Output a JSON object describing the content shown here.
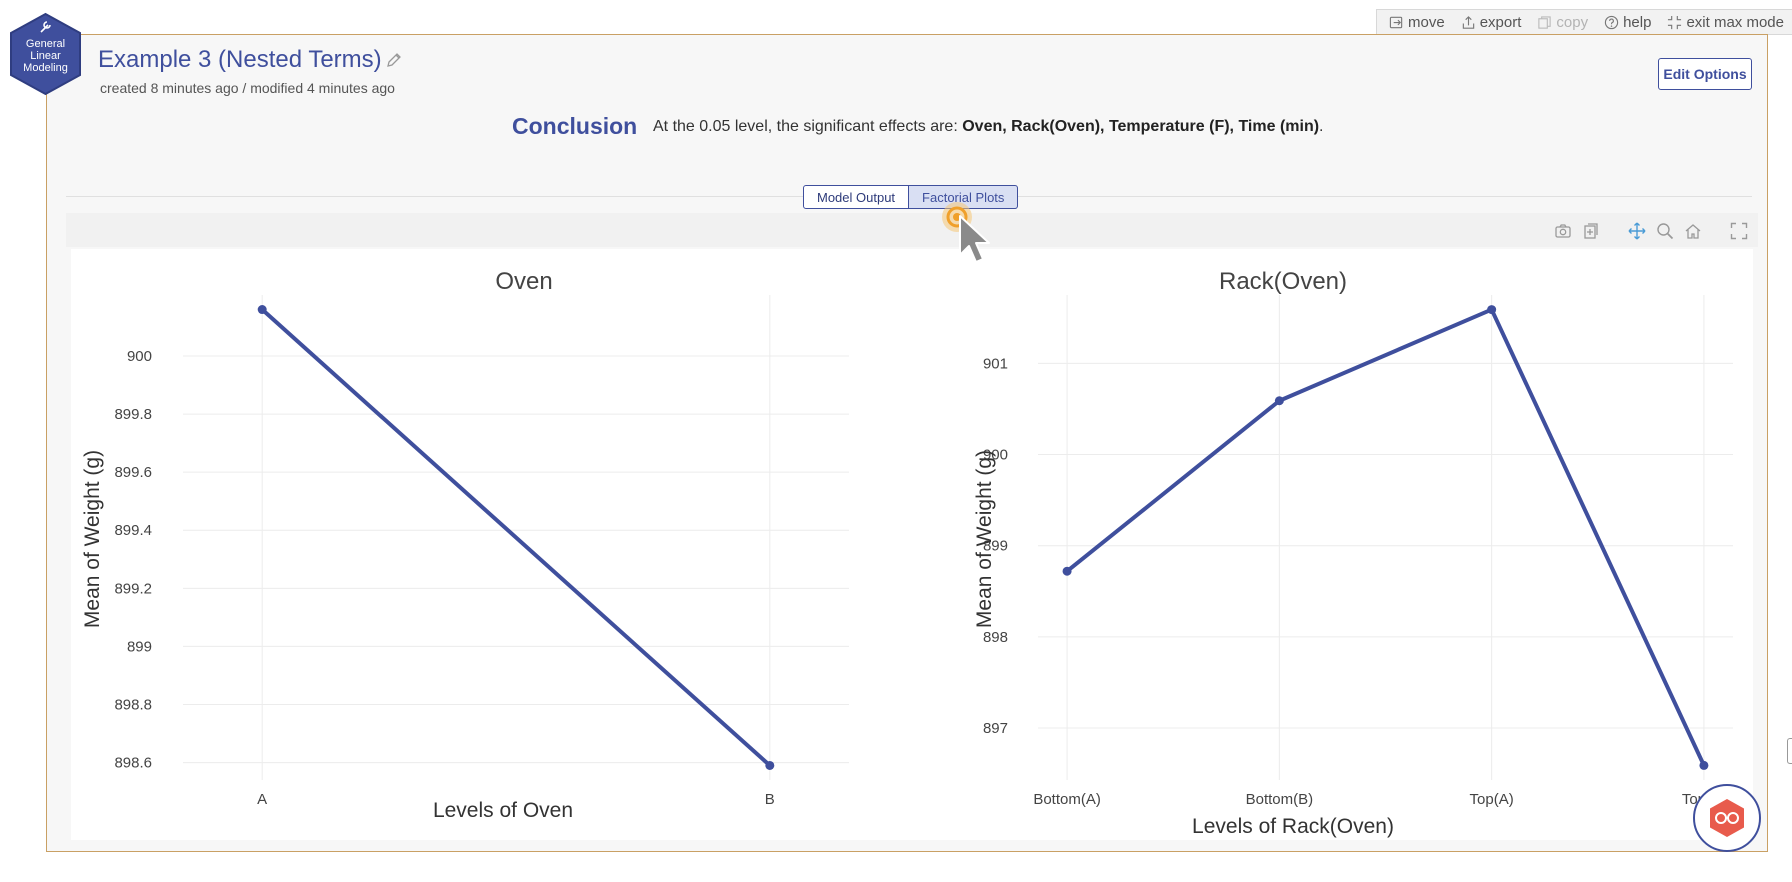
{
  "toolbar": {
    "move": "move",
    "export": "export",
    "copy": "copy",
    "help": "help",
    "exit": "exit max mode"
  },
  "badge": {
    "line1": "General",
    "line2": "Linear",
    "line3": "Modeling",
    "color": "#3f4f9d"
  },
  "analysis": {
    "title": "Example 3 (Nested Terms)",
    "meta": "created 8 minutes ago / modified 4 minutes ago",
    "edit_options": "Edit Options"
  },
  "conclusion": {
    "label": "Conclusion",
    "prefix": "At the 0.05 level, the significant effects are: ",
    "effects": "Oven, Rack(Oven), Temperature (F), Time (min)",
    "suffix": "."
  },
  "tabs": [
    {
      "label": "Model Output",
      "active": false
    },
    {
      "label": "Factorial Plots",
      "active": true
    }
  ],
  "modebar": [
    "camera-icon",
    "add-plot-icon",
    "pan-icon",
    "zoom-icon",
    "home-icon",
    "fullscreen-icon"
  ],
  "colors": {
    "accent": "#3f4f9d",
    "line": "#3f4f9d",
    "frame": "#c9a064",
    "bot": "#e85b4c"
  },
  "chart_data": [
    {
      "type": "line",
      "title": "Oven",
      "xlabel": "Levels of Oven",
      "ylabel": "Mean of Weight (g)",
      "categories": [
        "A",
        "B"
      ],
      "values": [
        900.16,
        898.59
      ],
      "yticks": [
        "898.6",
        "898.8",
        "899",
        "899.2",
        "899.4",
        "899.6",
        "899.8",
        "900"
      ],
      "ylim": [
        898.54,
        900.21
      ],
      "grid": true
    },
    {
      "type": "line",
      "title": "Rack(Oven)",
      "xlabel": "Levels of Rack(Oven)",
      "ylabel": "Mean of Weight (g)",
      "categories": [
        "Bottom(A)",
        "Bottom(B)",
        "Top(A)",
        "Top(B)"
      ],
      "values": [
        898.72,
        900.59,
        901.59,
        896.59
      ],
      "yticks": [
        "897",
        "898",
        "899",
        "900",
        "901"
      ],
      "ylim": [
        896.43,
        901.75
      ],
      "grid": true
    }
  ]
}
